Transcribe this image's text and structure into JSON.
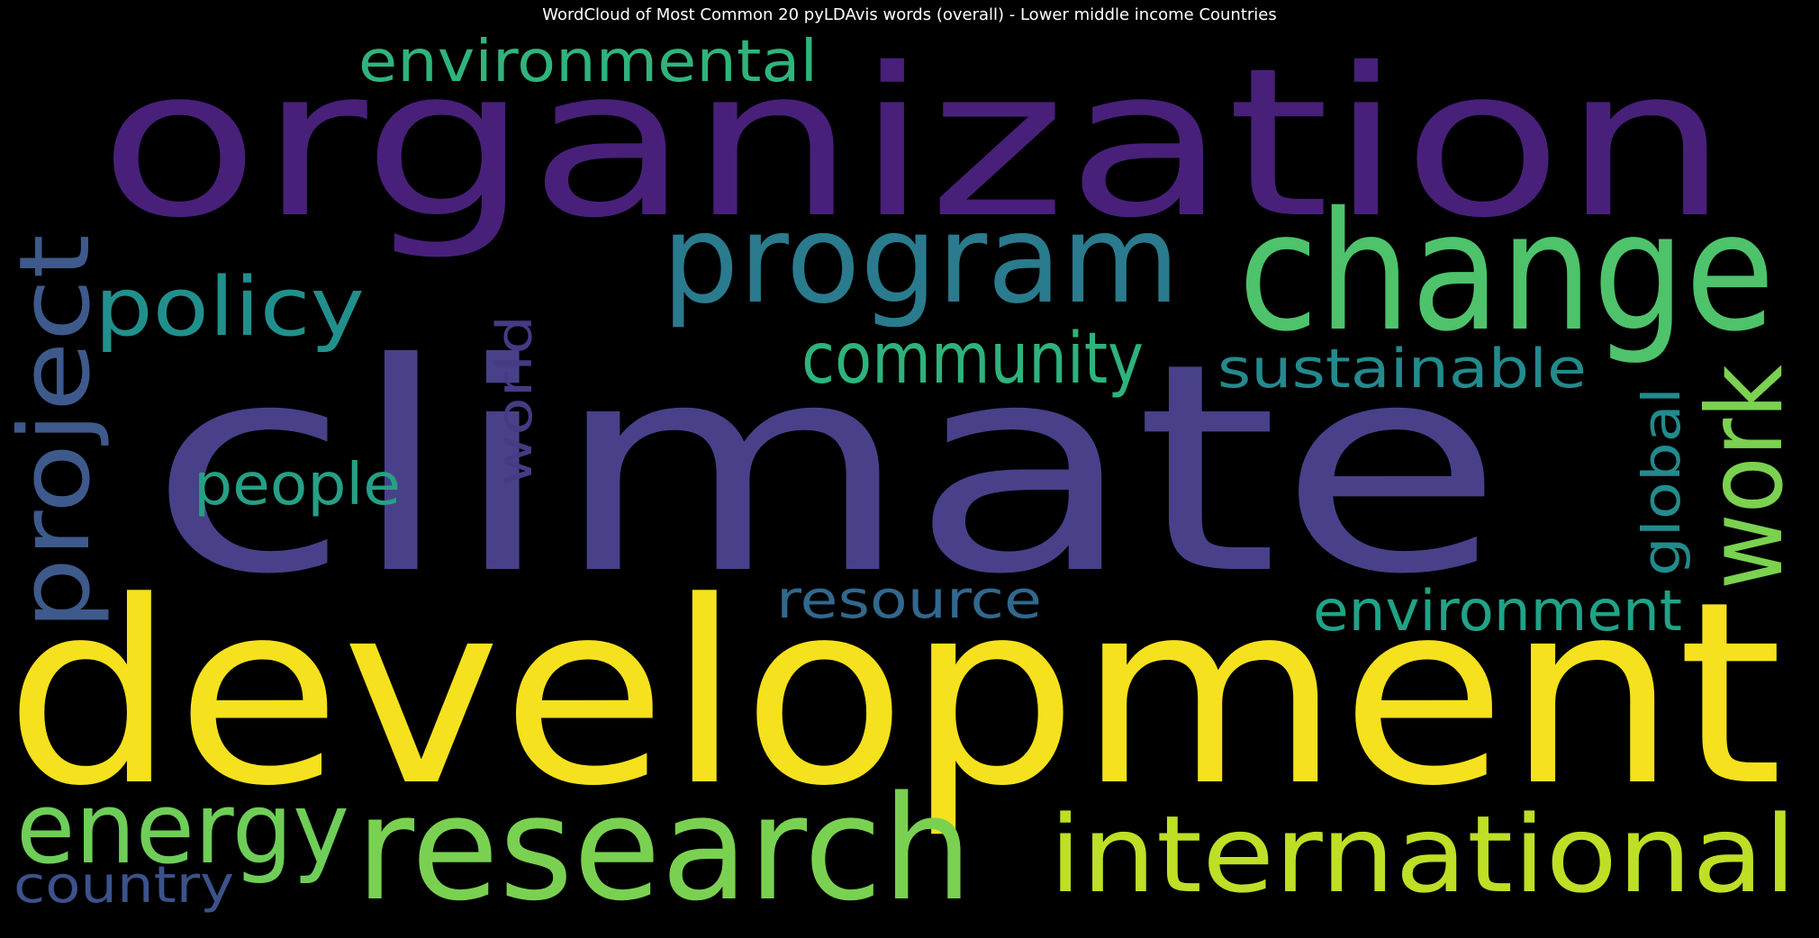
{
  "chart_data": {
    "type": "wordcloud",
    "title": "WordCloud of Most Common 20 pyLDAvis words (overall) - Lower middle income Countries",
    "words": [
      {
        "text": "climate",
        "color": "#48418a",
        "vertical": false
      },
      {
        "text": "organization",
        "color": "#48207a",
        "vertical": false
      },
      {
        "text": "development",
        "color": "#f5e11e",
        "vertical": false
      },
      {
        "text": "change",
        "color": "#4ec36b",
        "vertical": false
      },
      {
        "text": "research",
        "color": "#7ad151",
        "vertical": false
      },
      {
        "text": "program",
        "color": "#2a7b8e",
        "vertical": false
      },
      {
        "text": "international",
        "color": "#bddf26",
        "vertical": false
      },
      {
        "text": "project",
        "color": "#3e5a8c",
        "vertical": true
      },
      {
        "text": "energy",
        "color": "#6ece58",
        "vertical": false
      },
      {
        "text": "work",
        "color": "#7bd150",
        "vertical": true
      },
      {
        "text": "policy",
        "color": "#21908c",
        "vertical": false
      },
      {
        "text": "community",
        "color": "#2eb37c",
        "vertical": false
      },
      {
        "text": "environmental",
        "color": "#2fb47c",
        "vertical": false
      },
      {
        "text": "environment",
        "color": "#20a386",
        "vertical": false
      },
      {
        "text": "sustainable",
        "color": "#238a8d",
        "vertical": false
      },
      {
        "text": "people",
        "color": "#26a085",
        "vertical": false
      },
      {
        "text": "resource",
        "color": "#31688e",
        "vertical": false
      },
      {
        "text": "global",
        "color": "#228b8d",
        "vertical": true
      },
      {
        "text": "world",
        "color": "#443b84",
        "vertical": true
      },
      {
        "text": "country",
        "color": "#3b528b",
        "vertical": false
      }
    ]
  }
}
